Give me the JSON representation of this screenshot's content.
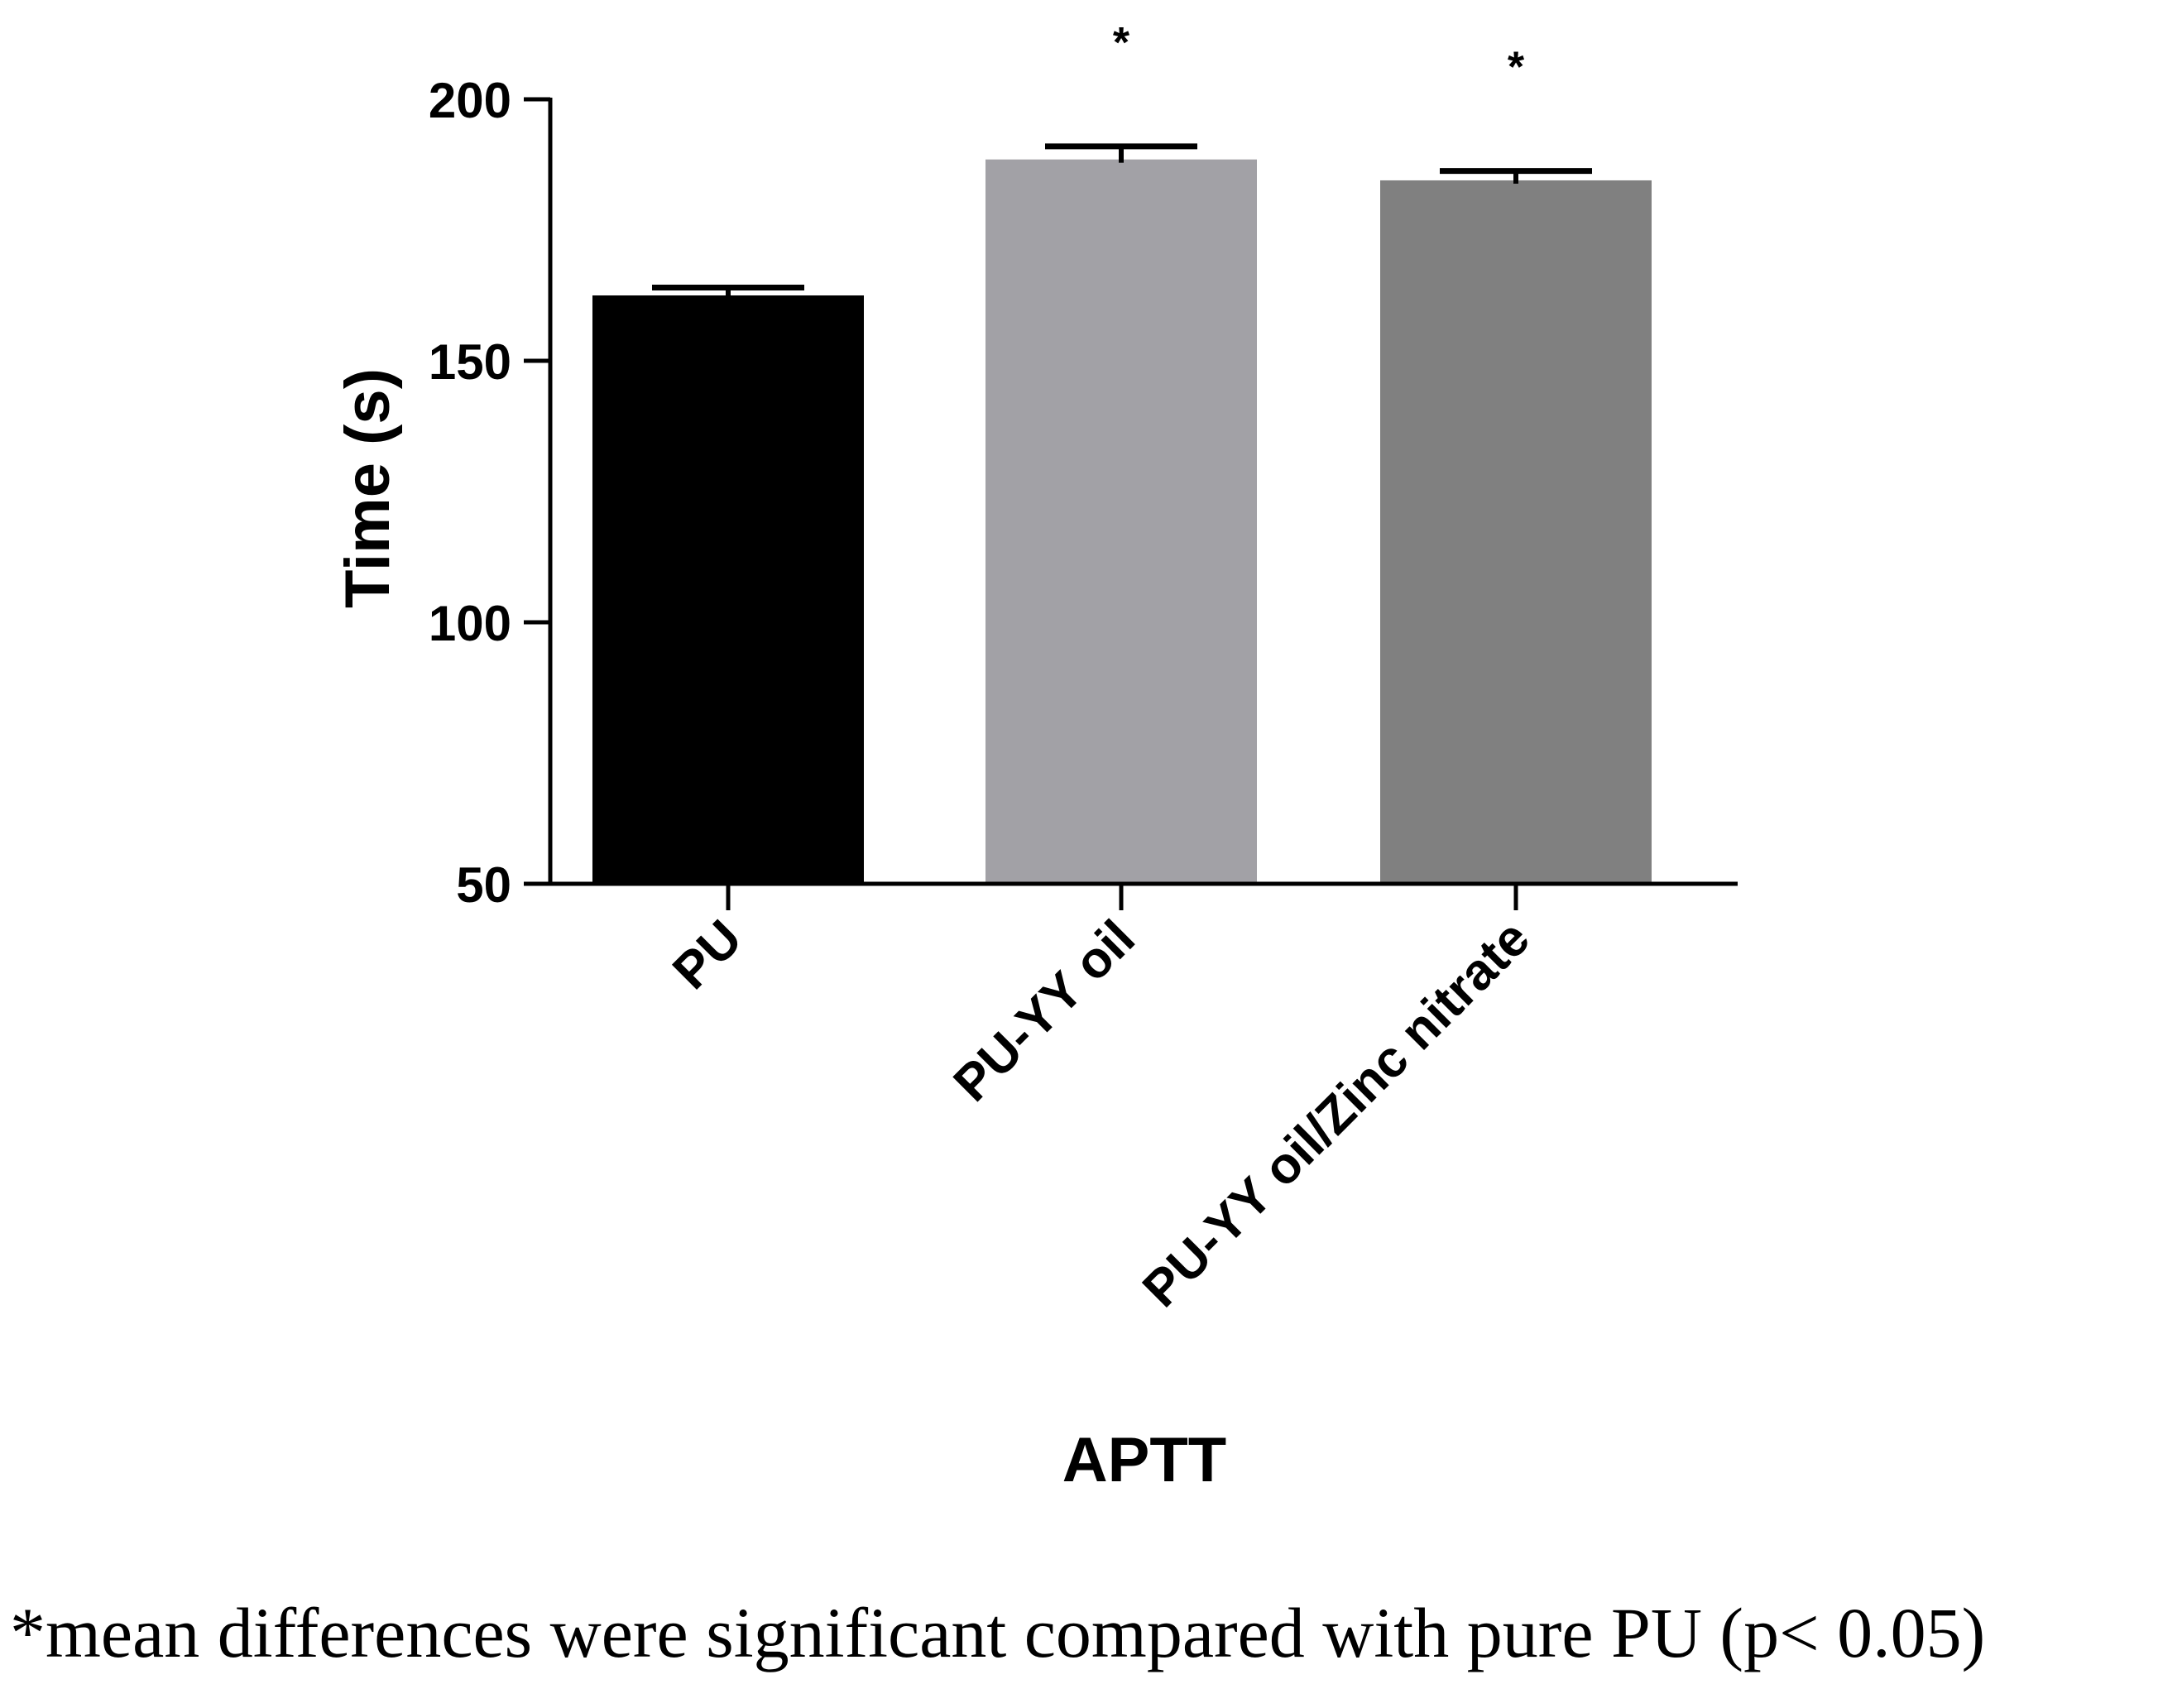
{
  "chart_data": {
    "type": "bar",
    "title": "",
    "xlabel": "APTT",
    "ylabel": "Time (s)",
    "ylim": [
      50,
      200
    ],
    "yticks": [
      50,
      100,
      150,
      200
    ],
    "grid": false,
    "categories": [
      "PU",
      "PU-YY oil",
      "PU-YY oil/Zinc nitrate"
    ],
    "values": [
      162.5,
      188.5,
      184.5
    ],
    "errors": [
      1.5,
      2.5,
      1.8
    ],
    "significance_markers": [
      "",
      "*",
      "*"
    ],
    "colors": [
      "#000000",
      "#a2a1a6",
      "#808080"
    ]
  },
  "footnote": "*mean differences were significant compared with pure PU (p< 0.05)"
}
